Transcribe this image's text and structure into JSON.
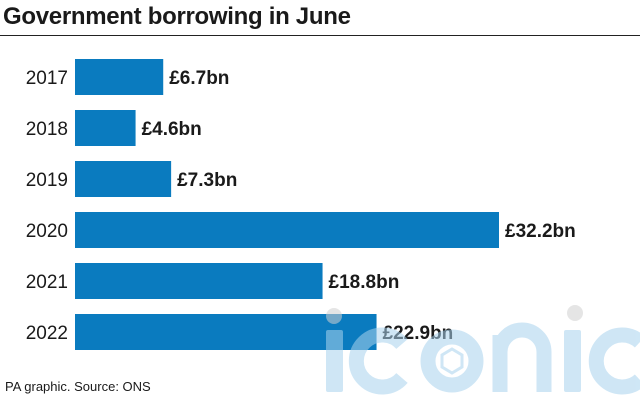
{
  "title": "Government borrowing in June",
  "source": "PA graphic. Source: ONS",
  "colors": {
    "bar": "#0a7bbf",
    "watermark": "#b9dcf0",
    "watermark_dot": "#d6d6d6"
  },
  "watermark": {
    "text": "iconic"
  },
  "chart_data": {
    "type": "bar",
    "orientation": "horizontal",
    "title": "Government borrowing in June",
    "categories": [
      "2017",
      "2018",
      "2019",
      "2020",
      "2021",
      "2022"
    ],
    "values": [
      6.7,
      4.6,
      7.3,
      32.2,
      18.8,
      22.9
    ],
    "value_labels": [
      "£6.7bn",
      "£4.6bn",
      "£7.3bn",
      "£32.2bn",
      "£18.8bn",
      "£22.9bn"
    ],
    "unit": "£bn",
    "xlabel": "",
    "ylabel": "",
    "xlim": [
      0,
      32.2
    ],
    "grid": false,
    "legend": "none"
  }
}
